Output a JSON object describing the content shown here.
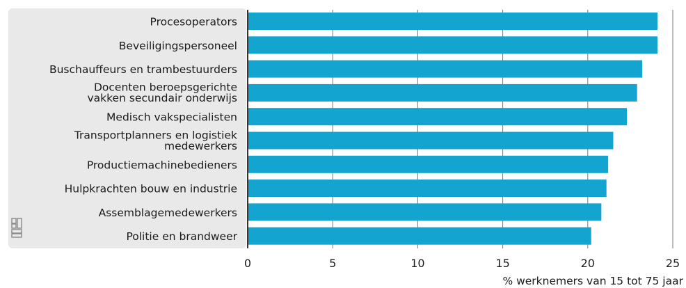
{
  "chart_data": {
    "type": "bar",
    "orientation": "horizontal",
    "categories": [
      [
        "Procesoperators"
      ],
      [
        "Beveiligingspersoneel"
      ],
      [
        "Buschauffeurs en trambestuurders"
      ],
      [
        "Docenten beroepsgerichte",
        "vakken secundair onderwijs"
      ],
      [
        "Medisch vakspecialisten"
      ],
      [
        "Transportplanners en logistiek",
        "medewerkers"
      ],
      [
        "Productiemachinebedieners"
      ],
      [
        "Hulpkrachten bouw en industrie"
      ],
      [
        "Assemblagemedewerkers"
      ],
      [
        "Politie en brandweer"
      ]
    ],
    "values": [
      24.1,
      24.1,
      23.2,
      22.9,
      22.3,
      21.5,
      21.2,
      21.1,
      20.8,
      20.2
    ],
    "xlabel": "% werknemers van 15 tot 75 jaar",
    "xlim": [
      0,
      25
    ],
    "xticks": [
      0,
      5,
      10,
      15,
      20,
      25
    ],
    "grid": "vertical",
    "colors": {
      "bar": "#13a4d0",
      "label_panel": "#e9e9e9",
      "axis": "#333333",
      "grid": "#777777",
      "logo": "#8a8a8a"
    },
    "logo_icon": "cbs-logo-icon"
  }
}
